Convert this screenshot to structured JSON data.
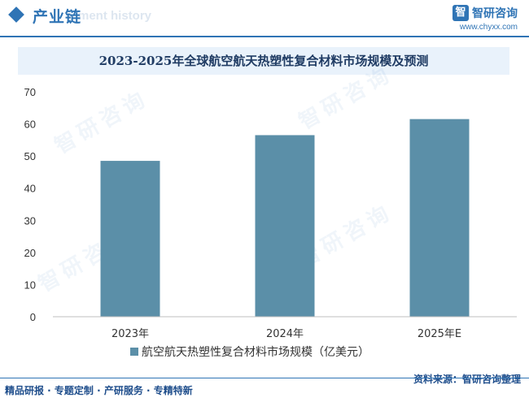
{
  "header": {
    "section_title": "产业链",
    "section_subtitle": "ment history",
    "logo_name": "智研咨询",
    "logo_url": "www.chyxx.com"
  },
  "watermark": "智研咨询",
  "chart_data": {
    "type": "bar",
    "title": "2023-2025年全球航空航天热塑性复合材料市场规模及预测",
    "categories": [
      "2023年",
      "2024年",
      "2025年E"
    ],
    "series": [
      {
        "name": "航空航天热塑性复合材料市场规模（亿美元）",
        "values": [
          48.5,
          56.5,
          61.5
        ]
      }
    ],
    "ylim": [
      0,
      70
    ],
    "yticks": [
      0,
      10,
      20,
      30,
      40,
      50,
      60,
      70
    ],
    "grid": false,
    "legend_position": "bottom",
    "bar_color": "#5b8fa8"
  },
  "footer": {
    "left": "精品研报 · 专题定制 · 产研服务 · 专精特新",
    "right": "资料来源：智研咨询整理"
  }
}
